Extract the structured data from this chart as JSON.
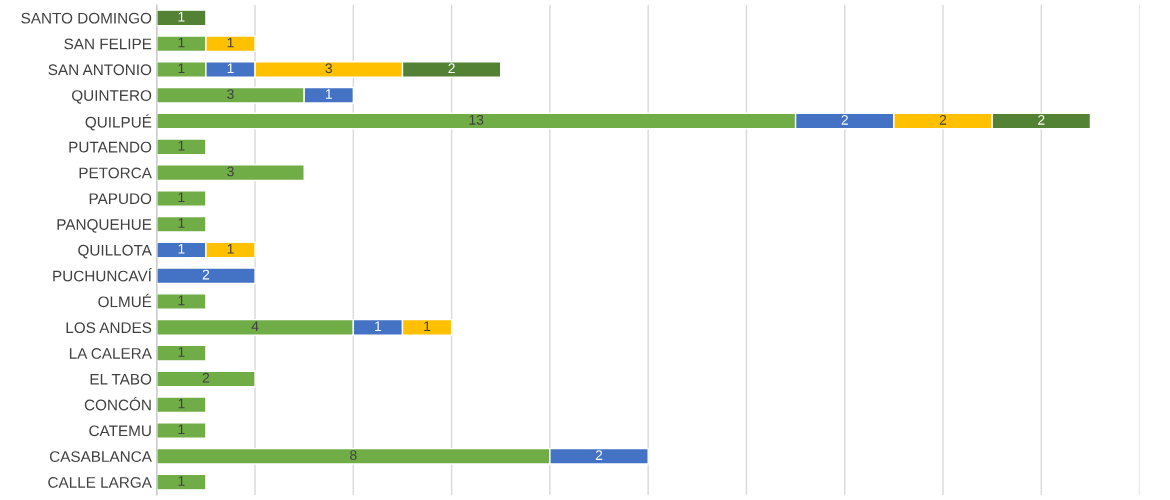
{
  "chart_data": {
    "type": "bar",
    "orientation": "horizontal",
    "stacked": true,
    "data_labels": true,
    "grid": "x",
    "tick_labels": "y",
    "categories": [
      "SANTO DOMINGO",
      "SAN FELIPE",
      "SAN ANTONIO",
      "QUINTERO",
      "QUILPUÉ",
      "PUTAENDO",
      "PETORCA",
      "PAPUDO",
      "PANQUEHUE",
      "QUILLOTA",
      "PUCHUNCAVÍ",
      "OLMUÉ",
      "LOS ANDES",
      "LA CALERA",
      "EL TABO",
      "CONCÓN",
      "CATEMU",
      "CASABLANCA",
      "CALLE LARGA"
    ],
    "series": [
      {
        "color": "#70ad47",
        "values": [
          null,
          1,
          1,
          3,
          13,
          1,
          3,
          1,
          1,
          null,
          null,
          1,
          4,
          1,
          2,
          1,
          1,
          8,
          1
        ]
      },
      {
        "color": "#4472c4",
        "values": [
          null,
          null,
          1,
          1,
          2,
          null,
          null,
          null,
          null,
          1,
          2,
          null,
          1,
          null,
          null,
          null,
          null,
          2,
          null
        ]
      },
      {
        "color": "#ffc000",
        "values": [
          null,
          1,
          3,
          null,
          2,
          null,
          null,
          null,
          null,
          1,
          null,
          null,
          1,
          null,
          null,
          null,
          null,
          null,
          null
        ]
      },
      {
        "color": "#548235",
        "values": [
          1,
          null,
          2,
          null,
          2,
          null,
          null,
          null,
          null,
          null,
          null,
          null,
          null,
          null,
          null,
          null,
          null,
          null,
          null
        ]
      }
    ],
    "xlim": [
      0,
      20
    ],
    "xticks": [
      {
        "value": 0,
        "label": null
      },
      {
        "value": 2,
        "label": null
      },
      {
        "value": 4,
        "label": null
      },
      {
        "value": 6,
        "label": null
      },
      {
        "value": 8,
        "label": null
      },
      {
        "value": 10,
        "label": null
      },
      {
        "value": 12,
        "label": null
      },
      {
        "value": 14,
        "label": null
      },
      {
        "value": 16,
        "label": null
      },
      {
        "value": 18,
        "label": null
      },
      {
        "value": 20,
        "label": null
      }
    ]
  }
}
